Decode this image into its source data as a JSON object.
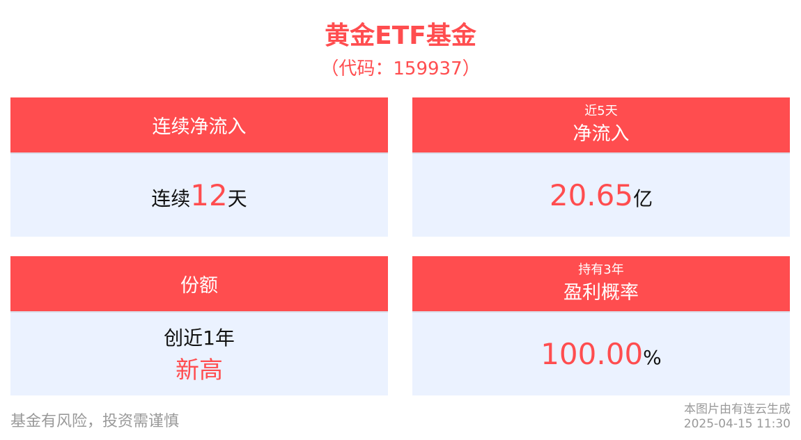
{
  "header": {
    "title": "黄金ETF基金",
    "code": "（代码：159937）"
  },
  "cards": [
    {
      "title": "连续净流入",
      "prefix": "连续",
      "value": "12",
      "suffix": "天"
    },
    {
      "subtitle": "近5天",
      "title": "净流入",
      "value": "20.65",
      "suffix": "亿"
    },
    {
      "title": "份额",
      "line1": "创近1年",
      "line2": "新高"
    },
    {
      "subtitle": "持有3年",
      "title": "盈利概率",
      "value": "100.00",
      "suffix": "%"
    }
  ],
  "footer": {
    "disclaimer": "基金有风险，投资需谨慎",
    "source": "本图片由有连云生成",
    "timestamp": "2025-04-15 11:30"
  },
  "colors": {
    "accent": "#ff4d4f",
    "card_body": "#ebf2ff"
  }
}
